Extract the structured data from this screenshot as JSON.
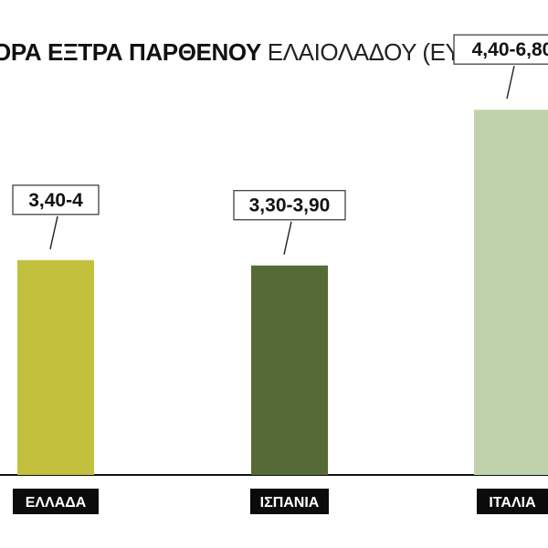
{
  "title": {
    "bold": "ΟΡΑ ΕΞΤΡΑ ΠΑΡΘΕΝΟΥ",
    "light": "ΕΛΑΙΟΛΑΔΟΥ (ΕΥΡΩ/"
  },
  "chart_data": {
    "type": "bar",
    "categories": [
      "ΕΛΛΑΔΑ",
      "ΙΣΠΑΝΙΑ",
      "ΙΤΑΛΙΑ"
    ],
    "value_labels": [
      "3,40-4",
      "3,30-3,90",
      "4,40-6,80"
    ],
    "ranges": [
      [
        3.4,
        4.0
      ],
      [
        3.3,
        3.9
      ],
      [
        4.4,
        6.8
      ]
    ],
    "values": [
      4.0,
      3.9,
      6.8
    ],
    "colors": [
      "#c3c03e",
      "#556a35",
      "#c0d2ac"
    ],
    "grid": false,
    "legend": "none"
  }
}
